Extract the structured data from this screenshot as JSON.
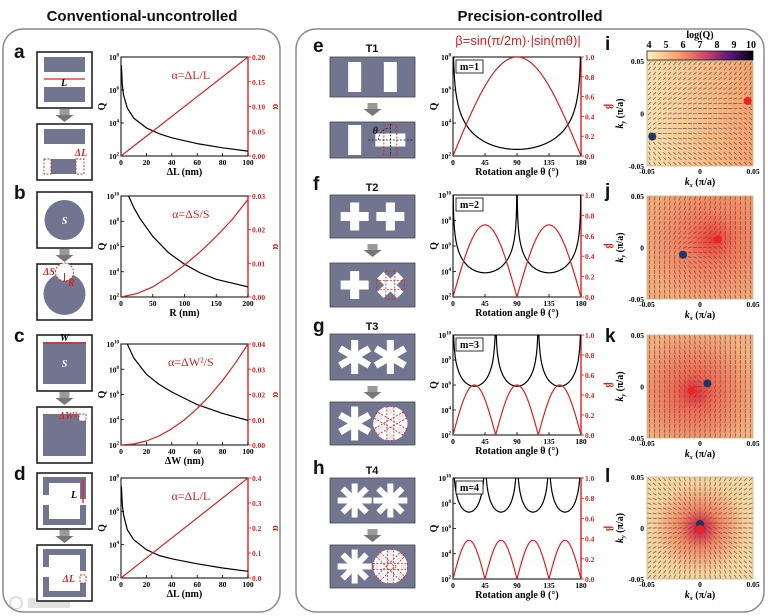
{
  "titles": {
    "left": "Conventional-uncontrolled",
    "right": "Precision-controlled"
  },
  "panel_letters": [
    "a",
    "b",
    "c",
    "d",
    "e",
    "f",
    "g",
    "h",
    "i",
    "j",
    "k",
    "l"
  ],
  "structures": {
    "e": "T1",
    "f": "T2",
    "g": "T3",
    "h": "T4"
  },
  "beta_formula": "β=sin(π/2m)·|sin(mθ)|",
  "schematic_labels": {
    "a": [
      "L",
      "ΔL"
    ],
    "b": [
      "S",
      "ΔS",
      "R"
    ],
    "c": [
      "W",
      "S",
      "ΔW²"
    ],
    "d": [
      "L",
      "ΔL"
    ],
    "e": [
      "θ"
    ]
  },
  "watermark": "大数跨境",
  "colors": {
    "q_curve": "#000000",
    "alpha_curve": "#e0201c",
    "structure": "#72758f",
    "dot_blue": "#1f3563",
    "dot_red": "#ee2222"
  },
  "chart_data": [
    {
      "panel": "a",
      "type": "line",
      "xlabel": "ΔL (nm)",
      "ylabel_left": "Q",
      "ylabel_right": "α",
      "annotation": "α=ΔL/L",
      "xlim": [
        0,
        100
      ],
      "xticks": [
        0,
        20,
        40,
        60,
        80,
        100
      ],
      "y_left_log10_lim": [
        2,
        8
      ],
      "y_left_tick_exponents": [
        2,
        4,
        6,
        8
      ],
      "y_right_lim": [
        0,
        0.2
      ],
      "y_right_ticks": [
        "0.00",
        "0.05",
        "0.10",
        "0.15",
        "0.20"
      ],
      "series": [
        {
          "name": "Q",
          "axis": "left",
          "log10_points": [
            [
              0.3,
              7.5
            ],
            [
              1,
              6.3
            ],
            [
              2,
              5.7
            ],
            [
              5,
              4.9
            ],
            [
              10,
              4.3
            ],
            [
              20,
              3.7
            ],
            [
              30,
              3.35
            ],
            [
              40,
              3.1
            ],
            [
              60,
              2.75
            ],
            [
              80,
              2.5
            ],
            [
              100,
              2.3
            ]
          ]
        },
        {
          "name": "α",
          "axis": "right",
          "points": [
            [
              0,
              0
            ],
            [
              100,
              0.2
            ]
          ]
        }
      ]
    },
    {
      "panel": "b",
      "type": "line",
      "xlabel": "R (nm)",
      "ylabel_left": "Q",
      "ylabel_right": "α",
      "annotation": "α=ΔS/S",
      "xlim": [
        0,
        200
      ],
      "xticks": [
        0,
        50,
        100,
        150,
        200
      ],
      "y_left_log10_lim": [
        2,
        10
      ],
      "y_left_tick_exponents": [
        2,
        4,
        6,
        8,
        10
      ],
      "y_right_lim": [
        0,
        0.03
      ],
      "y_right_ticks": [
        "0.00",
        "0.01",
        "0.02",
        "0.03"
      ],
      "series": [
        {
          "name": "Q",
          "axis": "left",
          "log10_points": [
            [
              12,
              10
            ],
            [
              20,
              9.1
            ],
            [
              30,
              8.2
            ],
            [
              50,
              6.8
            ],
            [
              75,
              5.5
            ],
            [
              100,
              4.6
            ],
            [
              125,
              3.9
            ],
            [
              150,
              3.4
            ],
            [
              175,
              3.1
            ],
            [
              200,
              2.8
            ]
          ]
        },
        {
          "name": "α",
          "axis": "right",
          "points": [
            [
              0,
              0
            ],
            [
              25,
              0.001
            ],
            [
              50,
              0.003
            ],
            [
              75,
              0.006
            ],
            [
              100,
              0.0095
            ],
            [
              125,
              0.0135
            ],
            [
              150,
              0.018
            ],
            [
              175,
              0.023
            ],
            [
              200,
              0.029
            ]
          ]
        }
      ]
    },
    {
      "panel": "c",
      "type": "line",
      "xlabel": "ΔW (nm)",
      "ylabel_left": "Q",
      "ylabel_right": "α",
      "annotation": "α=ΔW²/S",
      "xlim": [
        0,
        100
      ],
      "xticks": [
        0,
        20,
        40,
        60,
        80,
        100
      ],
      "y_left_log10_lim": [
        2,
        10
      ],
      "y_left_tick_exponents": [
        2,
        4,
        6,
        8,
        10
      ],
      "y_right_lim": [
        0,
        0.04
      ],
      "y_right_ticks": [
        "0.00",
        "0.01",
        "0.02",
        "0.03",
        "0.04"
      ],
      "series": [
        {
          "name": "Q",
          "axis": "left",
          "log10_points": [
            [
              5,
              10
            ],
            [
              10,
              8.9
            ],
            [
              20,
              7.6
            ],
            [
              30,
              6.8
            ],
            [
              40,
              6.2
            ],
            [
              60,
              5.2
            ],
            [
              80,
              4.5
            ],
            [
              100,
              3.95
            ]
          ]
        },
        {
          "name": "α",
          "axis": "right",
          "points": [
            [
              0,
              0
            ],
            [
              10,
              0.0004
            ],
            [
              20,
              0.0016
            ],
            [
              30,
              0.0036
            ],
            [
              40,
              0.0064
            ],
            [
              50,
              0.01
            ],
            [
              60,
              0.0144
            ],
            [
              70,
              0.0196
            ],
            [
              80,
              0.0256
            ],
            [
              90,
              0.0324
            ],
            [
              100,
              0.04
            ]
          ]
        }
      ]
    },
    {
      "panel": "d",
      "type": "line",
      "xlabel": "ΔL (nm)",
      "ylabel_left": "Q",
      "ylabel_right": "α",
      "annotation": "α=ΔL/L",
      "xlim": [
        0,
        100
      ],
      "xticks": [
        0,
        20,
        40,
        60,
        80,
        100
      ],
      "y_left_log10_lim": [
        2,
        8
      ],
      "y_left_tick_exponents": [
        2,
        4,
        6,
        8
      ],
      "y_right_lim": [
        0,
        0.4
      ],
      "y_right_ticks": [
        "0.0",
        "0.1",
        "0.2",
        "0.3",
        "0.4"
      ],
      "series": [
        {
          "name": "Q",
          "axis": "left",
          "log10_points": [
            [
              0.3,
              7.5
            ],
            [
              1,
              6.4
            ],
            [
              2,
              5.8
            ],
            [
              5,
              4.9
            ],
            [
              10,
              4.3
            ],
            [
              20,
              3.7
            ],
            [
              30,
              3.35
            ],
            [
              40,
              3.15
            ],
            [
              60,
              2.85
            ],
            [
              80,
              2.6
            ],
            [
              100,
              2.4
            ]
          ]
        },
        {
          "name": "α",
          "axis": "right",
          "points": [
            [
              0,
              0
            ],
            [
              100,
              0.4
            ]
          ]
        }
      ]
    },
    {
      "panel": "e",
      "type": "line",
      "xlabel": "Rotation angle θ (°)",
      "ylabel_left": "Q",
      "ylabel_right": "β",
      "annotation": "m=1",
      "m": 1,
      "beta_max": 1.0,
      "Q_min_log10": 2.4,
      "xlim": [
        0,
        180
      ],
      "xticks": [
        0,
        45,
        90,
        135,
        180
      ],
      "y_left_log10_lim": [
        2,
        8
      ],
      "y_left_tick_exponents": [
        2,
        4,
        6,
        8
      ],
      "y_right_lim": [
        0,
        1
      ],
      "y_right_ticks": [
        "0.0",
        "0.2",
        "0.4",
        "0.6",
        "0.8",
        "1.0"
      ]
    },
    {
      "panel": "f",
      "type": "line",
      "xlabel": "Rotation angle θ (°)",
      "ylabel_left": "Q",
      "ylabel_right": "β",
      "annotation": "m=2",
      "m": 2,
      "beta_max": 0.707,
      "Q_min_log10": 3.9,
      "xlim": [
        0,
        180
      ],
      "xticks": [
        0,
        45,
        90,
        135,
        180
      ],
      "y_left_log10_lim": [
        2,
        10
      ],
      "y_left_tick_exponents": [
        2,
        4,
        6,
        8,
        10
      ],
      "y_right_lim": [
        0,
        1
      ],
      "y_right_ticks": [
        "0.0",
        "0.2",
        "0.4",
        "0.6",
        "0.8",
        "1.0"
      ]
    },
    {
      "panel": "g",
      "type": "line",
      "xlabel": "Rotation angle θ (°)",
      "ylabel_left": "Q",
      "ylabel_right": "β",
      "annotation": "m=3",
      "m": 3,
      "beta_max": 0.5,
      "Q_min_log10": 5.9,
      "xlim": [
        0,
        180
      ],
      "xticks": [
        0,
        45,
        90,
        135,
        180
      ],
      "y_left_log10_lim": [
        2,
        10
      ],
      "y_left_tick_exponents": [
        2,
        4,
        6,
        8,
        10
      ],
      "y_right_lim": [
        0,
        1
      ],
      "y_right_ticks": [
        "0.0",
        "0.2",
        "0.4",
        "0.6",
        "0.8",
        "1.0"
      ]
    },
    {
      "panel": "h",
      "type": "line",
      "xlabel": "Rotation angle θ (°)",
      "ylabel_left": "Q",
      "ylabel_right": "β",
      "annotation": "m=4",
      "m": 4,
      "beta_max": 0.383,
      "Q_min_log10": 7.3,
      "xlim": [
        0,
        180
      ],
      "xticks": [
        0,
        45,
        90,
        135,
        180
      ],
      "y_left_log10_lim": [
        2,
        10
      ],
      "y_left_tick_exponents": [
        2,
        4,
        6,
        8,
        10
      ],
      "y_right_lim": [
        0,
        1
      ],
      "y_right_ticks": [
        "0.0",
        "0.2",
        "0.4",
        "0.6",
        "0.8",
        "1.0"
      ]
    },
    {
      "panel": "i",
      "type": "heatmap",
      "colorbar_title": "log(Q)",
      "colorbar_ticks": [
        "4",
        "5",
        "6",
        "7",
        "8",
        "9",
        "10"
      ],
      "xlabel": {
        "symbol": "k",
        "sub": "x",
        "unit": " (π/a)"
      },
      "ylabel": {
        "symbol": "k",
        "sub": "y",
        "unit": " (π/a)"
      },
      "lim": [
        -0.05,
        0.05
      ],
      "ticks": [
        "-0.05",
        "0",
        "0.05"
      ],
      "blue_point": [
        -0.045,
        -0.022
      ],
      "red_point": [
        0.045,
        0.012
      ]
    },
    {
      "panel": "j",
      "type": "heatmap",
      "xlabel": {
        "symbol": "k",
        "sub": "x",
        "unit": " (π/a)"
      },
      "ylabel": {
        "symbol": "k",
        "sub": "y",
        "unit": " (π/a)"
      },
      "lim": [
        -0.05,
        0.05
      ],
      "ticks": [
        "-0.05",
        "0",
        "0.05"
      ],
      "blue_point": [
        -0.016,
        -0.007
      ],
      "red_point": [
        0.017,
        0.008
      ]
    },
    {
      "panel": "k",
      "type": "heatmap",
      "xlabel": {
        "symbol": "k",
        "sub": "x",
        "unit": " (π/a)"
      },
      "ylabel": {
        "symbol": "k",
        "sub": "y",
        "unit": " (π/a)"
      },
      "lim": [
        -0.05,
        0.05
      ],
      "ticks": [
        "-0.05",
        "0",
        "0.05"
      ],
      "blue_point": [
        0.007,
        0.003
      ],
      "red_point": [
        -0.008,
        -0.004
      ]
    },
    {
      "panel": "l",
      "type": "heatmap",
      "xlabel": {
        "symbol": "k",
        "sub": "x",
        "unit": " (π/a)"
      },
      "ylabel": {
        "symbol": "k",
        "sub": "y",
        "unit": " (π/a)"
      },
      "lim": [
        -0.05,
        0.05
      ],
      "ticks": [
        "-0.05",
        "0",
        "0.05"
      ],
      "blue_point": [
        0.0,
        0.004
      ],
      "red_point": [
        0.0,
        -0.001
      ]
    }
  ]
}
